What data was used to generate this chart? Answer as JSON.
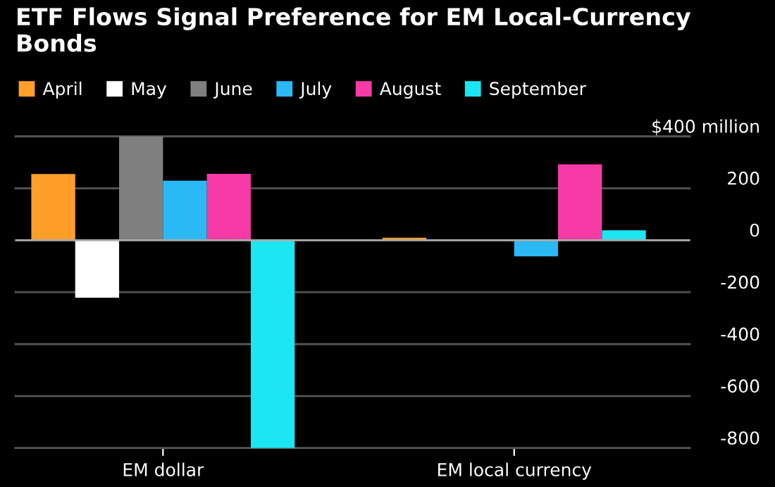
{
  "chart_data": {
    "type": "bar",
    "title": "ETF Flows Signal Preference for EM Local-Currency Bonds",
    "categories": [
      "EM dollar",
      "EM local currency"
    ],
    "series": [
      {
        "name": "April",
        "color": "#ff9f2a",
        "values": [
          255,
          10
        ]
      },
      {
        "name": "May",
        "color": "#ffffff",
        "values": [
          -221,
          0
        ]
      },
      {
        "name": "June",
        "color": "#7f7f7f",
        "values": [
          400,
          0
        ]
      },
      {
        "name": "July",
        "color": "#2ab9f5",
        "values": [
          229,
          -62
        ]
      },
      {
        "name": "August",
        "color": "#f73ba6",
        "values": [
          256,
          292
        ]
      },
      {
        "name": "September",
        "color": "#1ce6f2",
        "values": [
          -800,
          38
        ]
      }
    ],
    "ylim": [
      -800,
      400
    ],
    "yticks": [
      {
        "value": 400,
        "label": "$400 million"
      },
      200,
      0,
      -200,
      -400,
      -600,
      -800
    ],
    "grid": "y",
    "legend": "top left"
  }
}
